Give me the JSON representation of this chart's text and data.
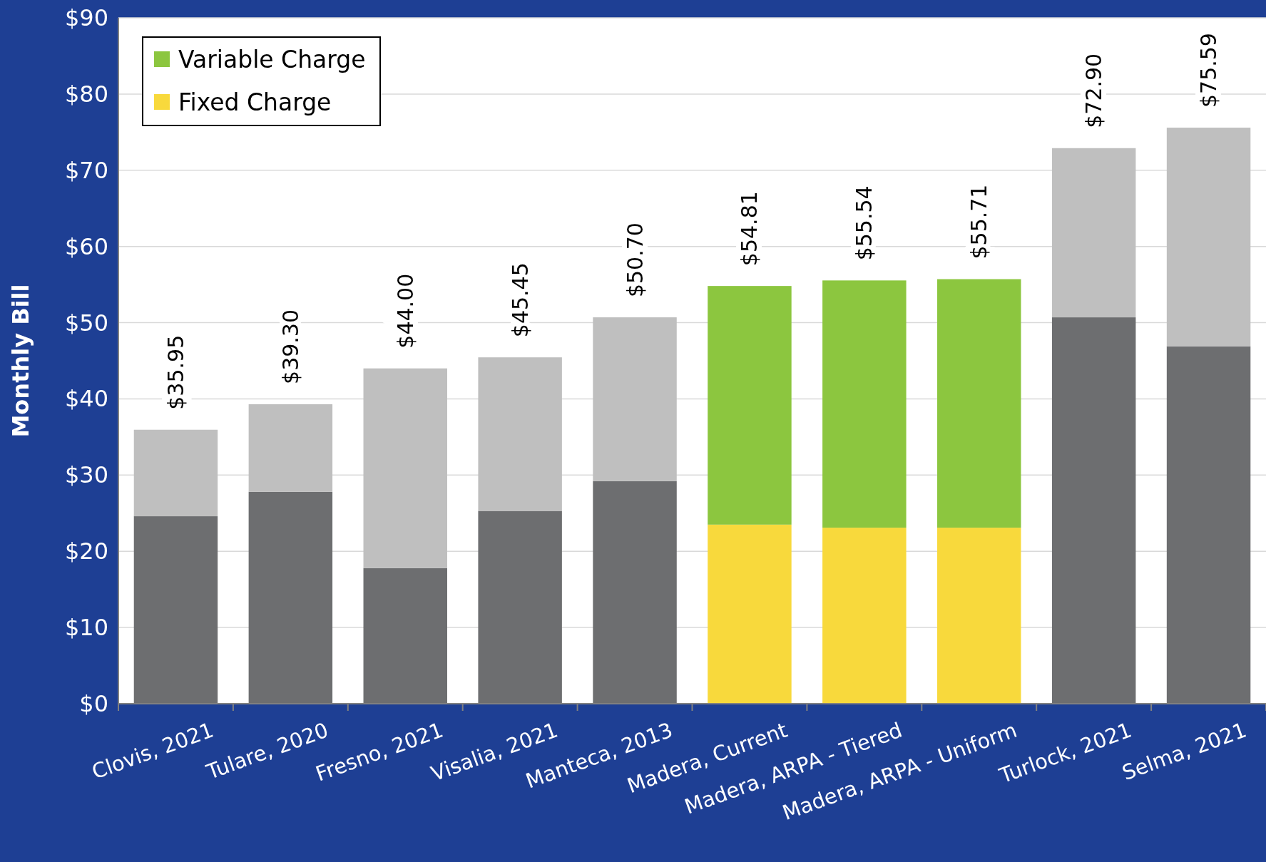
{
  "chart_data": {
    "type": "bar",
    "stacked": true,
    "ylabel": "Monthly Bill",
    "categories": [
      "Clovis, 2021",
      "Tulare, 2020",
      "Fresno, 2021",
      "Visalia, 2021",
      "Manteca, 2013",
      "Madera, Current",
      "Madera, ARPA - Tiered",
      "Madera, ARPA - Uniform",
      "Turlock, 2021",
      "Selma, 2021"
    ],
    "series": [
      {
        "name": "Fixed Charge",
        "color": "#f8d93c",
        "colors": [
          "#6d6e70",
          "#6d6e70",
          "#6d6e70",
          "#6d6e70",
          "#6d6e70",
          "#f8d93c",
          "#f8d93c",
          "#f8d93c",
          "#6d6e70",
          "#6d6e70"
        ],
        "values": [
          24.6,
          27.8,
          17.8,
          25.3,
          29.2,
          23.5,
          23.1,
          23.1,
          50.7,
          46.9
        ]
      },
      {
        "name": "Variable Charge",
        "color": "#8cc63f",
        "colors": [
          "#bfbfbf",
          "#bfbfbf",
          "#bfbfbf",
          "#bfbfbf",
          "#bfbfbf",
          "#8cc63f",
          "#8cc63f",
          "#8cc63f",
          "#bfbfbf",
          "#bfbfbf"
        ],
        "values": [
          11.35,
          11.5,
          26.2,
          20.15,
          21.5,
          31.31,
          32.44,
          32.61,
          22.2,
          28.69
        ]
      }
    ],
    "totals": [
      "$35.95",
      "$39.30",
      "$44.00",
      "$45.45",
      "$50.70",
      "$54.81",
      "$55.54",
      "$55.71",
      "$72.90",
      "$75.59"
    ],
    "ylim": [
      0,
      90
    ],
    "yticks": [
      {
        "value": 0,
        "label": "$0"
      },
      {
        "value": 10,
        "label": "$10"
      },
      {
        "value": 20,
        "label": "$20"
      },
      {
        "value": 30,
        "label": "$30"
      },
      {
        "value": 40,
        "label": "$40"
      },
      {
        "value": 50,
        "label": "$50"
      },
      {
        "value": 60,
        "label": "$60"
      },
      {
        "value": 70,
        "label": "$70"
      },
      {
        "value": 80,
        "label": "$80"
      },
      {
        "value": 90,
        "label": "$90"
      }
    ],
    "grid": "y",
    "legend": "top left"
  }
}
